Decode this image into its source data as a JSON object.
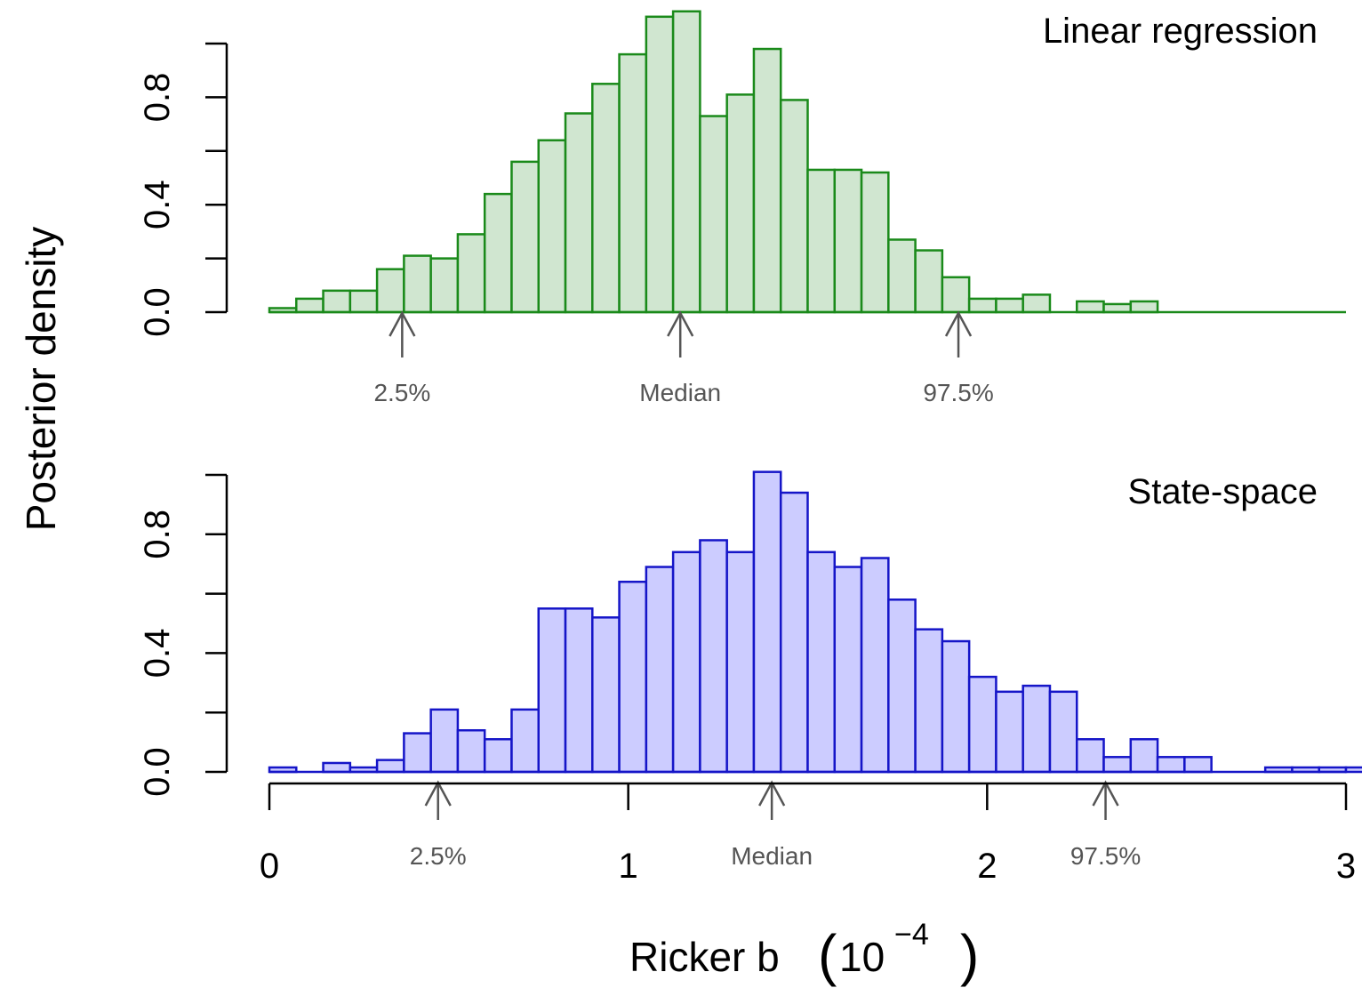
{
  "chart_data": [
    {
      "type": "bar",
      "title": "Linear regression",
      "ylabel": "Posterior density",
      "xlabel": "Ricker b (10^-4)",
      "xlim": [
        0,
        3
      ],
      "ylim": [
        0,
        1.0
      ],
      "yticks": [
        "0.0",
        "0.4",
        "0.8"
      ],
      "yticks_minor": [
        0.2,
        0.6,
        1.0
      ],
      "bin_width": 0.075,
      "bin_start": 0,
      "values": [
        0.015,
        0.05,
        0.08,
        0.08,
        0.16,
        0.21,
        0.2,
        0.29,
        0.44,
        0.56,
        0.64,
        0.74,
        0.85,
        0.96,
        1.1,
        1.12,
        0.73,
        0.81,
        0.98,
        0.79,
        0.53,
        0.53,
        0.52,
        0.27,
        0.23,
        0.13,
        0.05,
        0.05,
        0.065,
        0,
        0.04,
        0.03,
        0.04,
        0,
        0,
        0,
        0,
        0,
        0,
        0
      ],
      "colors": {
        "fill": "#d0e6d0",
        "stroke": "#1a8a1a"
      },
      "annotations": [
        {
          "label": "2.5%",
          "x": 0.37
        },
        {
          "label": "Median",
          "x": 1.145
        },
        {
          "label": "97.5%",
          "x": 1.92
        }
      ]
    },
    {
      "type": "bar",
      "title": "State-space",
      "ylabel": "Posterior density",
      "xlabel": "Ricker b (10^-4)",
      "xlim": [
        0,
        3
      ],
      "ylim": [
        0,
        1.0
      ],
      "yticks": [
        "0.0",
        "0.4",
        "0.8"
      ],
      "yticks_minor": [
        0.2,
        0.6,
        1.0
      ],
      "xticks": [
        "0",
        "1",
        "2",
        "3"
      ],
      "bin_width": 0.075,
      "bin_start": 0,
      "values": [
        0.015,
        0,
        0.03,
        0.015,
        0.04,
        0.13,
        0.21,
        0.14,
        0.11,
        0.21,
        0.55,
        0.55,
        0.52,
        0.64,
        0.69,
        0.74,
        0.78,
        0.74,
        1.01,
        0.94,
        0.74,
        0.69,
        0.72,
        0.58,
        0.48,
        0.44,
        0.32,
        0.27,
        0.29,
        0.27,
        0.11,
        0.05,
        0.11,
        0.05,
        0.05,
        0,
        0,
        0.015,
        0.015,
        0.015,
        0.015
      ],
      "colors": {
        "fill": "#ccccff",
        "stroke": "#1515c8"
      },
      "annotations": [
        {
          "label": "2.5%",
          "x": 0.47
        },
        {
          "label": "Median",
          "x": 1.4
        },
        {
          "label": "97.5%",
          "x": 2.33
        }
      ]
    }
  ],
  "ylabel_text": "Posterior density",
  "xlabel_main": "Ricker b ",
  "xlabel_base": "10",
  "xlabel_exp": "−4",
  "colors": {
    "axis": "#000000",
    "annotation": "#555555"
  }
}
